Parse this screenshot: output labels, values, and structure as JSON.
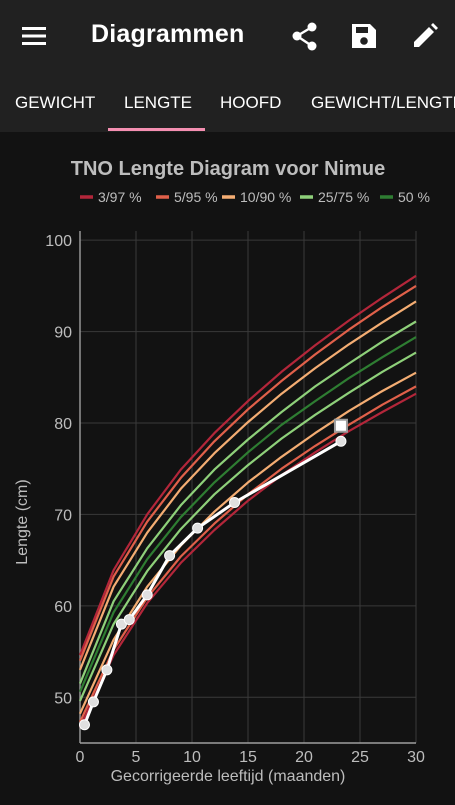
{
  "appbar": {
    "title": "Diagrammen",
    "icons": [
      "menu-icon",
      "share-icon",
      "save-icon",
      "edit-icon"
    ]
  },
  "tabs": [
    {
      "label": "GEWICHT",
      "active": false
    },
    {
      "label": "LENGTE",
      "active": true
    },
    {
      "label": "HOOFD",
      "active": false
    },
    {
      "label": "GEWICHT/LENGTE",
      "active": false
    }
  ],
  "colors": {
    "accent": "#f48fb1",
    "p3": "#b3263a",
    "p5": "#e0604a",
    "p10": "#f4ad73",
    "p25": "#8ed07a",
    "p50": "#2e7d32",
    "child": "#ffffff"
  },
  "chart_data": {
    "type": "line",
    "title": "TNO Lengte Diagram voor Nimue",
    "xlabel": "Gecorrigeerde leeftijd (maanden)",
    "ylabel": "Lengte (cm)",
    "xlim": [
      0,
      30
    ],
    "ylim": [
      45,
      101
    ],
    "xticks": [
      0,
      5,
      10,
      15,
      20,
      25,
      30
    ],
    "yticks": [
      50,
      60,
      70,
      80,
      90,
      100
    ],
    "grid": true,
    "legend_position": "top",
    "legend": [
      {
        "label": "3/97 %",
        "color": "#b3263a"
      },
      {
        "label": "5/95 %",
        "color": "#e0604a"
      },
      {
        "label": "10/90 %",
        "color": "#f4ad73"
      },
      {
        "label": "25/75 %",
        "color": "#8ed07a"
      },
      {
        "label": "50 %",
        "color": "#2e7d32"
      }
    ],
    "x": [
      0,
      3,
      6,
      9,
      12,
      15,
      18,
      21,
      24,
      27,
      30
    ],
    "series": [
      {
        "name": "3/97 %",
        "color": "#b3263a",
        "values": [
          54.6,
          63.9,
          70.0,
          74.9,
          78.9,
          82.4,
          85.6,
          88.5,
          91.2,
          93.7,
          96.1
        ]
      },
      {
        "name": "5/95 %",
        "color": "#e0604a",
        "values": [
          54.0,
          63.2,
          69.2,
          74.0,
          78.0,
          81.5,
          84.6,
          87.5,
          90.2,
          92.7,
          95.0
        ]
      },
      {
        "name": "10/90 %",
        "color": "#f4ad73",
        "values": [
          53.0,
          62.1,
          68.0,
          72.8,
          76.7,
          80.1,
          83.2,
          86.0,
          88.6,
          91.0,
          93.3
        ]
      },
      {
        "name": "25/75 %",
        "color": "#8ed07a",
        "values": [
          51.5,
          60.5,
          66.3,
          71.0,
          74.9,
          78.2,
          81.2,
          84.0,
          86.5,
          88.9,
          91.1
        ]
      },
      {
        "name": "50 %",
        "color": "#2e7d32",
        "values": [
          50.6,
          59.3,
          65.1,
          69.7,
          73.5,
          76.8,
          79.8,
          82.4,
          84.9,
          87.2,
          89.4
        ]
      },
      {
        "name": "25/75 %",
        "color": "#8ed07a",
        "values": [
          49.6,
          58.0,
          63.8,
          68.4,
          72.2,
          75.4,
          78.3,
          80.9,
          83.3,
          85.6,
          87.7
        ]
      },
      {
        "name": "10/90 %",
        "color": "#f4ad73",
        "values": [
          48.2,
          56.3,
          62.1,
          66.6,
          70.3,
          73.5,
          76.3,
          78.9,
          81.3,
          83.5,
          85.5
        ]
      },
      {
        "name": "5/95 %",
        "color": "#e0604a",
        "values": [
          47.3,
          55.2,
          60.9,
          65.4,
          69.0,
          72.2,
          75.0,
          77.5,
          79.8,
          82.0,
          84.0
        ]
      },
      {
        "name": "3/97 %",
        "color": "#b3263a",
        "values": [
          46.7,
          54.6,
          60.3,
          64.7,
          68.3,
          71.5,
          74.3,
          76.8,
          79.1,
          81.2,
          83.2
        ]
      }
    ],
    "measurements": {
      "x": [
        0.4,
        1.2,
        2.4,
        3.7,
        4.4,
        6.0,
        8.0,
        10.5,
        13.8,
        23.3
      ],
      "values": [
        47.0,
        49.5,
        53.0,
        58.0,
        58.5,
        61.2,
        65.5,
        68.5,
        71.3,
        78.0
      ]
    },
    "projection": {
      "x": 23.3,
      "value": 79.7
    }
  }
}
